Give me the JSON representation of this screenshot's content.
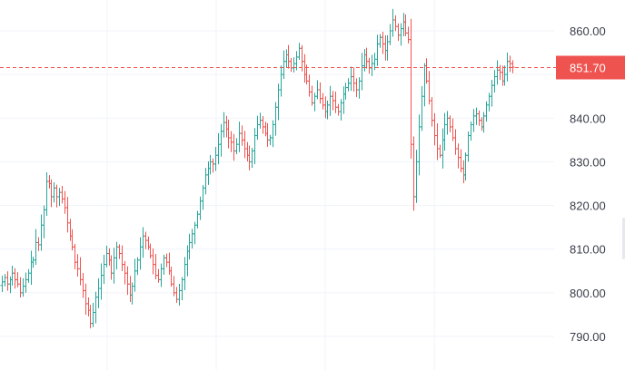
{
  "chart_data": {
    "type": "ohlc",
    "title": "",
    "xlabel": "",
    "ylabel": "",
    "ylim": [
      786,
      865
    ],
    "y_ticks": [
      {
        "value": 790,
        "label": "790.00"
      },
      {
        "value": 800,
        "label": "800.00"
      },
      {
        "value": 810,
        "label": "810.00"
      },
      {
        "value": 820,
        "label": "820.00"
      },
      {
        "value": 830,
        "label": "830.00"
      },
      {
        "value": 840,
        "label": "840.00"
      },
      {
        "value": 850,
        "label": "850.00"
      },
      {
        "value": 860,
        "label": "860.00"
      }
    ],
    "last_price": {
      "value": 851.7,
      "label": "851.70"
    },
    "grid": true,
    "colors": {
      "up": "#26a69a",
      "down": "#ef5350",
      "grid": "#f0f3fa",
      "price_line": "#ef5350",
      "text": "#3a3e4a"
    },
    "close_path": [
      802.5,
      803.5,
      802.0,
      803.0,
      804.5,
      803.0,
      802.0,
      800.0,
      801.5,
      803.0,
      804.5,
      807.0,
      807.5,
      811.5,
      811.0,
      815.5,
      819.0,
      825.5,
      825.0,
      822.0,
      824.0,
      822.0,
      823.0,
      821.5,
      819.5,
      816.0,
      813.0,
      810.5,
      807.0,
      805.5,
      803.0,
      800.5,
      797.5,
      796.0,
      793.0,
      795.5,
      799.0,
      801.0,
      804.0,
      806.5,
      809.0,
      807.5,
      804.5,
      808.0,
      810.5,
      809.0,
      806.5,
      804.5,
      802.0,
      799.5,
      801.5,
      805.0,
      807.5,
      810.5,
      813.0,
      812.0,
      810.5,
      808.5,
      806.5,
      804.0,
      803.0,
      805.5,
      808.0,
      807.0,
      805.0,
      802.0,
      800.0,
      798.5,
      800.5,
      803.0,
      806.5,
      809.5,
      811.5,
      813.5,
      815.5,
      818.0,
      821.0,
      824.0,
      827.0,
      828.5,
      830.0,
      829.5,
      831.5,
      834.0,
      837.0,
      839.0,
      837.5,
      835.5,
      834.5,
      832.5,
      834.0,
      836.5,
      835.0,
      833.0,
      831.5,
      830.0,
      832.5,
      836.0,
      838.5,
      839.5,
      838.0,
      836.5,
      835.0,
      835.5,
      838.5,
      842.5,
      846.5,
      850.0,
      853.0,
      854.5,
      853.0,
      851.5,
      852.5,
      854.0,
      856.0,
      853.0,
      850.0,
      848.5,
      846.0,
      843.5,
      845.0,
      846.5,
      844.5,
      843.0,
      841.5,
      843.0,
      845.0,
      844.0,
      842.5,
      841.5,
      843.5,
      845.5,
      847.0,
      848.0,
      849.5,
      848.0,
      846.5,
      848.5,
      852.0,
      854.5,
      853.0,
      851.5,
      852.5,
      853.5,
      857.0,
      858.5,
      857.0,
      855.5,
      857.5,
      860.0,
      862.5,
      861.0,
      859.0,
      860.5,
      862.0,
      859.5,
      858.0,
      834.0,
      822.0,
      830.0,
      838.0,
      845.0,
      852.0,
      848.5,
      844.0,
      839.5,
      836.0,
      833.0,
      831.5,
      835.0,
      838.5,
      840.0,
      838.0,
      835.5,
      833.0,
      831.0,
      828.5,
      827.0,
      831.5,
      836.0,
      838.5,
      840.5,
      841.0,
      839.5,
      838.0,
      840.5,
      843.0,
      845.0,
      847.5,
      849.5,
      851.0,
      850.5,
      848.5,
      850.0,
      853.0,
      852.5,
      851.7
    ]
  }
}
